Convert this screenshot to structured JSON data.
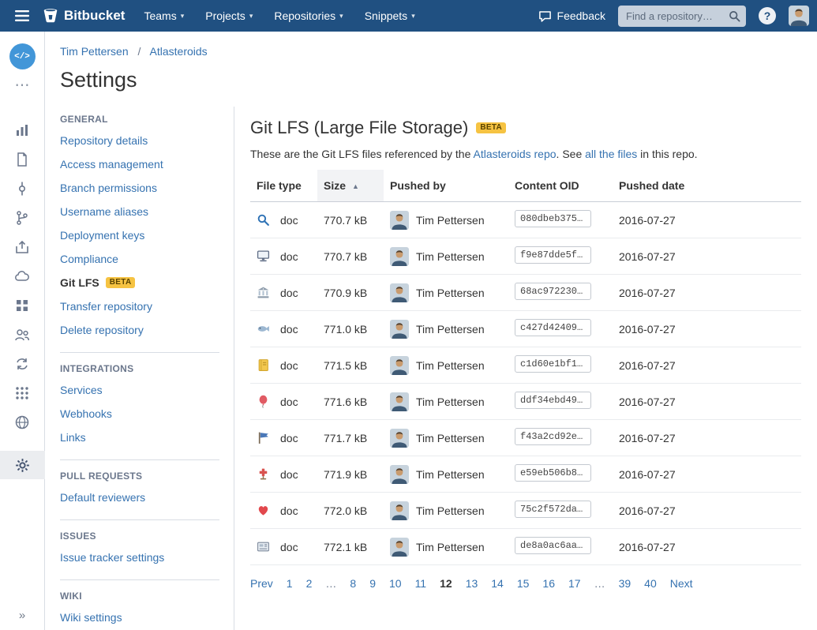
{
  "navbar": {
    "brand": "Bitbucket",
    "menu_items": [
      "Teams",
      "Projects",
      "Repositories",
      "Snippets"
    ],
    "caret": "▾",
    "feedback_label": "Feedback",
    "search_placeholder": "Find a repository…",
    "help_label": "?"
  },
  "rail": {
    "repo_avatar_text": "</>",
    "more_label": "⋯",
    "nav_icons": [
      "chart-icon",
      "document-icon",
      "commits-icon",
      "branch-icon",
      "upload-icon",
      "cloud-icon",
      "grid-icon",
      "users-icon",
      "cycle-icon",
      "blocks-icon",
      "globe-icon"
    ],
    "settings_icon": "gear-icon",
    "collapse_label": "»"
  },
  "breadcrumb": {
    "owner": "Tim Pettersen",
    "separator": "/",
    "repo": "Atlasteroids"
  },
  "page_title": "Settings",
  "sidebar": {
    "sections": [
      {
        "title": "GENERAL",
        "items": [
          {
            "label": "Repository details"
          },
          {
            "label": "Access management"
          },
          {
            "label": "Branch permissions"
          },
          {
            "label": "Username aliases"
          },
          {
            "label": "Deployment keys"
          },
          {
            "label": "Compliance"
          },
          {
            "label": "Git LFS",
            "badge": "BETA",
            "active": true
          },
          {
            "label": "Transfer repository"
          },
          {
            "label": "Delete repository"
          }
        ]
      },
      {
        "title": "INTEGRATIONS",
        "items": [
          {
            "label": "Services"
          },
          {
            "label": "Webhooks"
          },
          {
            "label": "Links"
          }
        ]
      },
      {
        "title": "PULL REQUESTS",
        "items": [
          {
            "label": "Default reviewers"
          }
        ]
      },
      {
        "title": "ISSUES",
        "items": [
          {
            "label": "Issue tracker settings"
          }
        ]
      },
      {
        "title": "WIKI",
        "items": [
          {
            "label": "Wiki settings"
          }
        ]
      }
    ]
  },
  "main": {
    "title": "Git LFS (Large File Storage)",
    "beta_badge": "BETA",
    "intro": {
      "text_before_link1": "These are the Git LFS files referenced by the ",
      "link1": "Atlasteroids repo",
      "text_between": ". See ",
      "link2": "all the files",
      "text_after": " in this repo."
    },
    "table": {
      "columns": [
        "File type",
        "Size",
        "Pushed by",
        "Content OID",
        "Pushed date"
      ],
      "sorted_column": "Size",
      "sort_direction": "asc",
      "sort_indicator": "▲",
      "rows": [
        {
          "icon": "magnifier-icon",
          "file_type": "doc",
          "size": "770.7 kB",
          "pushed_by": "Tim Pettersen",
          "content_oid": "080dbeb375…",
          "pushed_date": "2016-07-27"
        },
        {
          "icon": "monitor-icon",
          "file_type": "doc",
          "size": "770.7 kB",
          "pushed_by": "Tim Pettersen",
          "content_oid": "f9e87dde5f…",
          "pushed_date": "2016-07-27"
        },
        {
          "icon": "bank-icon",
          "file_type": "doc",
          "size": "770.9 kB",
          "pushed_by": "Tim Pettersen",
          "content_oid": "68ac972230…",
          "pushed_date": "2016-07-27"
        },
        {
          "icon": "fish-icon",
          "file_type": "doc",
          "size": "771.0 kB",
          "pushed_by": "Tim Pettersen",
          "content_oid": "c427d42409…",
          "pushed_date": "2016-07-27"
        },
        {
          "icon": "ledger-icon",
          "file_type": "doc",
          "size": "771.5 kB",
          "pushed_by": "Tim Pettersen",
          "content_oid": "c1d60e1bf1…",
          "pushed_date": "2016-07-27"
        },
        {
          "icon": "balloon-icon",
          "file_type": "doc",
          "size": "771.6 kB",
          "pushed_by": "Tim Pettersen",
          "content_oid": "ddf34ebd49…",
          "pushed_date": "2016-07-27"
        },
        {
          "icon": "flag-icon",
          "file_type": "doc",
          "size": "771.7 kB",
          "pushed_by": "Tim Pettersen",
          "content_oid": "f43a2cd92e…",
          "pushed_date": "2016-07-27"
        },
        {
          "icon": "cross-icon",
          "file_type": "doc",
          "size": "771.9 kB",
          "pushed_by": "Tim Pettersen",
          "content_oid": "e59eb506b8…",
          "pushed_date": "2016-07-27"
        },
        {
          "icon": "heart-icon",
          "file_type": "doc",
          "size": "772.0 kB",
          "pushed_by": "Tim Pettersen",
          "content_oid": "75c2f572da…",
          "pushed_date": "2016-07-27"
        },
        {
          "icon": "newspaper-icon",
          "file_type": "doc",
          "size": "772.1 kB",
          "pushed_by": "Tim Pettersen",
          "content_oid": "de8a0ac6aa…",
          "pushed_date": "2016-07-27"
        }
      ]
    },
    "pagination": {
      "prev_label": "Prev",
      "items": [
        "1",
        "2",
        "…",
        "8",
        "9",
        "10",
        "11",
        "12",
        "13",
        "14",
        "15",
        "16",
        "17",
        "…",
        "39",
        "40"
      ],
      "current": "12",
      "next_label": "Next"
    }
  },
  "colors": {
    "navbar_bg": "#205081",
    "link": "#3572b0",
    "badge_bg": "#f6c342",
    "badge_text": "#594300"
  }
}
